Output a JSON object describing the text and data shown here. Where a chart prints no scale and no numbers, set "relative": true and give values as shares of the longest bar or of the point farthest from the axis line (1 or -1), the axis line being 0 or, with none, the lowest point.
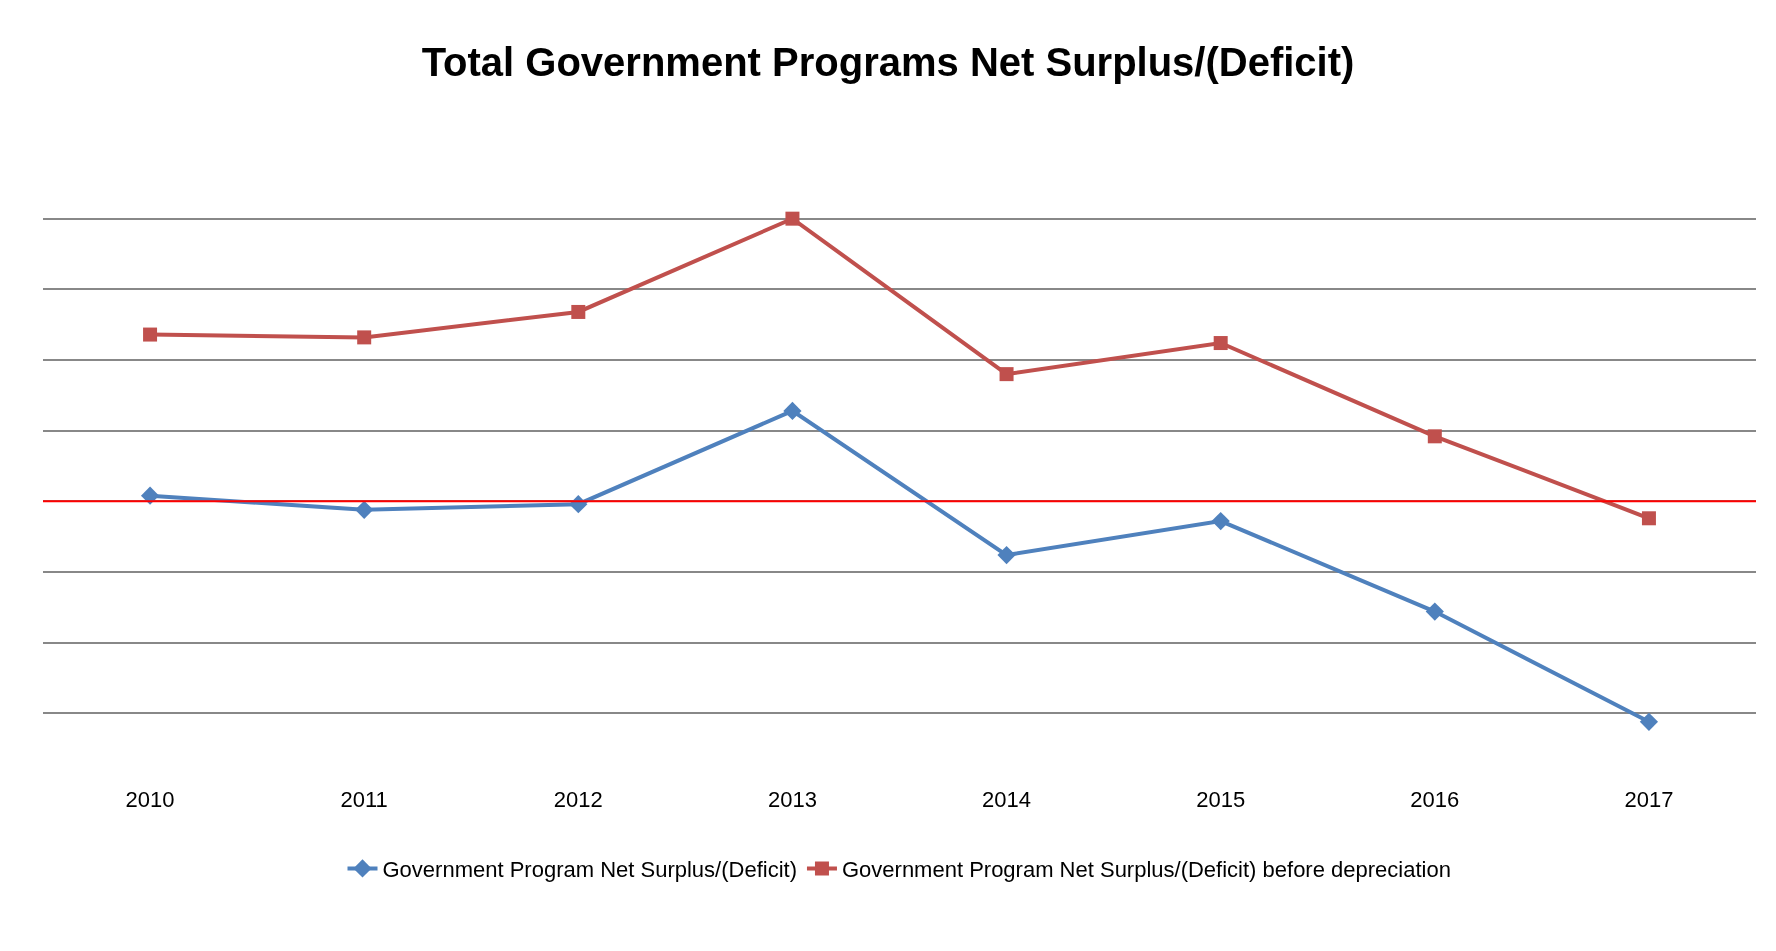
{
  "chart_data": {
    "type": "line",
    "title": "Total Government Programs Net Surplus/(Deficit)",
    "relative": true,
    "categories": [
      "2010",
      "2011",
      "2012",
      "2013",
      "2014",
      "2015",
      "2016",
      "2017"
    ],
    "series": [
      {
        "name": "Government Program Net Surplus/(Deficit)",
        "color": "#4f81bd",
        "marker": "diamond",
        "values": [
          0.02,
          -0.03,
          -0.01,
          0.32,
          -0.19,
          -0.07,
          -0.39,
          -0.78
        ]
      },
      {
        "name": "Government Program Net Surplus/(Deficit) before depreciation",
        "color": "#c0504d",
        "marker": "square",
        "values": [
          0.59,
          0.58,
          0.67,
          1,
          0.45,
          0.56,
          0.23,
          -0.06
        ]
      }
    ],
    "ref_lines": [
      {
        "axis": "y",
        "value": 0,
        "color": "#ff0000"
      }
    ],
    "grid": "y",
    "legend": "bottom",
    "line_style": "solid"
  }
}
